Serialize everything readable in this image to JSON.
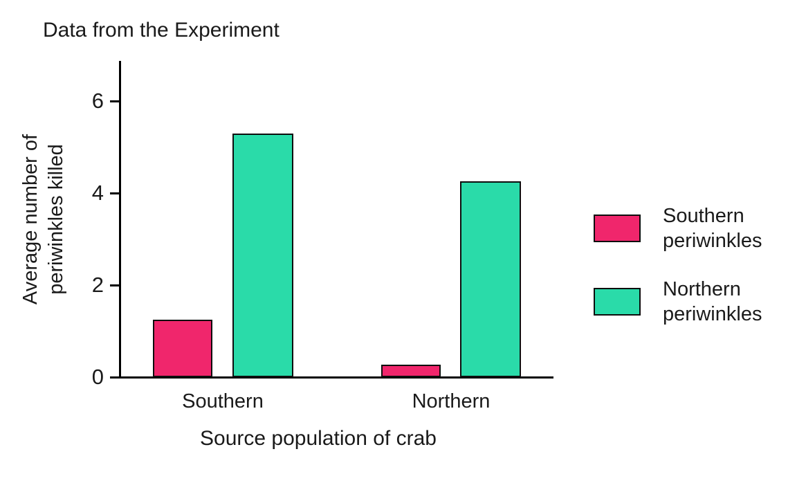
{
  "chart_data": {
    "type": "bar",
    "title": "Data from the Experiment",
    "categories": [
      "Southern",
      "Northern"
    ],
    "series": [
      {
        "name": "Southern periwinkles",
        "color": "#F0266C",
        "values": [
          1.25,
          0.27
        ]
      },
      {
        "name": "Northern periwinkles",
        "color": "#2ADBA9",
        "values": [
          5.3,
          4.25
        ]
      }
    ],
    "xlabel": "Source population of crab",
    "ylabel": "Average number of periwinkles killed",
    "yticks": [
      0,
      2,
      4,
      6
    ],
    "ylim": [
      0,
      6.9
    ],
    "grid": false,
    "legend_position": "right"
  }
}
